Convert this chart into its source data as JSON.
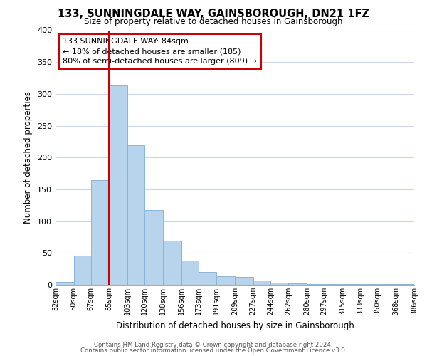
{
  "title": "133, SUNNINGDALE WAY, GAINSBOROUGH, DN21 1FZ",
  "subtitle": "Size of property relative to detached houses in Gainsborough",
  "xlabel": "Distribution of detached houses by size in Gainsborough",
  "ylabel": "Number of detached properties",
  "bar_color": "#b8d4ec",
  "bar_edge_color": "#8ab4d8",
  "bin_edges": [
    32,
    50,
    67,
    85,
    103,
    120,
    138,
    156,
    173,
    191,
    209,
    227,
    244,
    262,
    280,
    297,
    315,
    333,
    350,
    368,
    386
  ],
  "bin_labels": [
    "32sqm",
    "50sqm",
    "67sqm",
    "85sqm",
    "103sqm",
    "120sqm",
    "138sqm",
    "156sqm",
    "173sqm",
    "191sqm",
    "209sqm",
    "227sqm",
    "244sqm",
    "262sqm",
    "280sqm",
    "297sqm",
    "315sqm",
    "333sqm",
    "350sqm",
    "368sqm",
    "386sqm"
  ],
  "bar_heights": [
    5,
    46,
    165,
    313,
    219,
    118,
    69,
    38,
    20,
    13,
    12,
    7,
    3,
    2,
    1,
    1,
    1,
    1,
    1,
    1
  ],
  "ylim": [
    0,
    400
  ],
  "yticks": [
    0,
    50,
    100,
    150,
    200,
    250,
    300,
    350,
    400
  ],
  "vline_x": 85,
  "vline_color": "#cc0000",
  "annotation_title": "133 SUNNINGDALE WAY: 84sqm",
  "annotation_line1": "← 18% of detached houses are smaller (185)",
  "annotation_line2": "80% of semi-detached houses are larger (809) →",
  "footer_line1": "Contains HM Land Registry data © Crown copyright and database right 2024.",
  "footer_line2": "Contains public sector information licensed under the Open Government Licence v3.0.",
  "background_color": "#ffffff",
  "grid_color": "#c8d8ec"
}
